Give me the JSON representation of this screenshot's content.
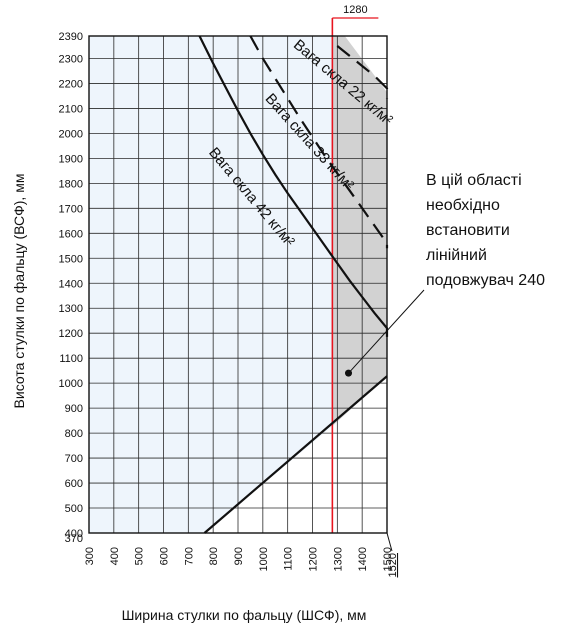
{
  "chart_data": {
    "type": "line",
    "xlabel": "Ширина стулки по фальцу (ШСФ), мм",
    "ylabel": "Висота стулки по фальцу (ВСФ), мм",
    "xlim": [
      300,
      1520
    ],
    "ylim": [
      370,
      2390
    ],
    "x_ticks": [
      "300",
      "400",
      "500",
      "600",
      "700",
      "800",
      "900",
      "1000",
      "1100",
      "1200",
      "1300",
      "1400",
      "1500"
    ],
    "x_end_tick": "1520",
    "y_ticks": [
      "370",
      "400",
      "500",
      "600",
      "700",
      "800",
      "900",
      "1000",
      "1100",
      "1200",
      "1300",
      "1400",
      "1500",
      "1600",
      "1700",
      "1800",
      "1900",
      "2000",
      "2100",
      "2200",
      "2300",
      "2390"
    ],
    "grid": true,
    "limit_line": {
      "x": 1280,
      "label": "1280",
      "color": "#e8141e"
    },
    "shaded_region": {
      "color": "#d2d2d2",
      "points": [
        [
          1280,
          2390
        ],
        [
          1330,
          2390
        ],
        [
          1520,
          2165
        ],
        [
          1520,
          1028
        ],
        [
          1280,
          828
        ]
      ]
    },
    "light_region": {
      "color": "#eef5fc",
      "points": [
        [
          300,
          2390
        ],
        [
          1280,
          2390
        ],
        [
          1280,
          828
        ],
        [
          765,
          370
        ],
        [
          300,
          370
        ]
      ]
    },
    "series": [
      {
        "name": "Вага скла 42 кг/м²",
        "style": "solid",
        "x": [
          745,
          800,
          850,
          900,
          950,
          1000,
          1050,
          1100,
          1150,
          1200,
          1250,
          1300,
          1350,
          1400,
          1450,
          1500,
          1520
        ],
        "y": [
          2390,
          2280,
          2185,
          2090,
          2000,
          1915,
          1835,
          1760,
          1690,
          1620,
          1550,
          1480,
          1410,
          1345,
          1280,
          1220,
          1185
        ]
      },
      {
        "name": "Вага скла 33 кг/м²",
        "style": "dashed",
        "x": [
          950,
          1000,
          1050,
          1100,
          1150,
          1200,
          1250,
          1300,
          1350,
          1400,
          1450,
          1500,
          1520
        ],
        "y": [
          2390,
          2300,
          2220,
          2140,
          2060,
          1985,
          1910,
          1840,
          1770,
          1700,
          1630,
          1560,
          1540
        ]
      },
      {
        "name": "Вага скла 22 кг/м²",
        "style": "dashed",
        "x": [
          1300,
          1350,
          1400,
          1450,
          1500,
          1520
        ],
        "y": [
          2350,
          2310,
          2270,
          2230,
          2180,
          2140
        ]
      },
      {
        "name": "",
        "style": "solid",
        "x": [
          765,
          1520
        ],
        "y": [
          370,
          1028
        ]
      }
    ],
    "curve_labels": [
      "Вага скла 42 кг/м²",
      "Вага скла 33 кг/м²",
      "Вага скла 22 кг/м²"
    ],
    "annotation": {
      "lines": [
        "В цій області",
        "необхідно",
        "встановити",
        "лінійний",
        "подовжувач 240"
      ],
      "points_to": [
        1345,
        1040
      ]
    }
  }
}
